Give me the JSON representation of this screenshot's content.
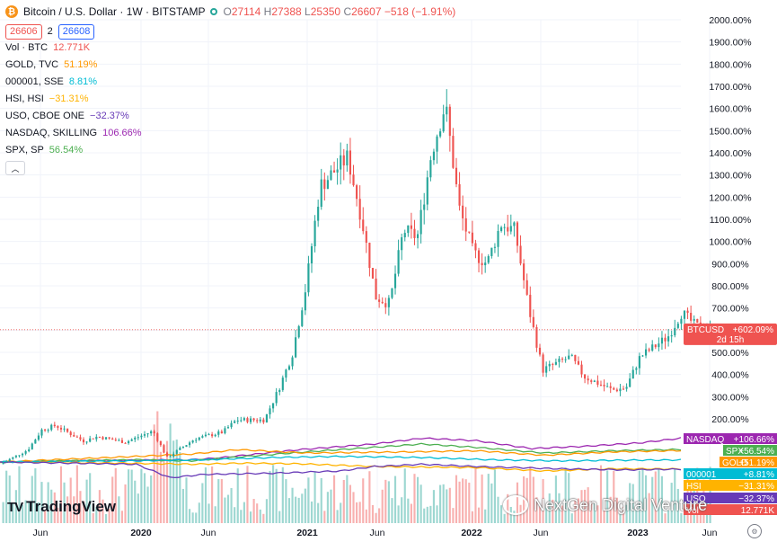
{
  "header": {
    "symbol": "Bitcoin / U.S. Dollar · 1W · BITSTAMP",
    "icon": "bitcoin-icon",
    "ohlc": {
      "o_label": "O",
      "o": "27114",
      "h_label": "H",
      "h": "27388",
      "l_label": "L",
      "l": "25350",
      "c_label": "C",
      "c": "26607",
      "change": "−518 (−1.91%)"
    },
    "bid": "26606",
    "spread": "2",
    "ask": "26608"
  },
  "legend": [
    {
      "label": "Vol · BTC",
      "value": "12.771K",
      "color": "#ef5350"
    },
    {
      "label": "GOLD, TVC",
      "value": "51.19%",
      "color": "#ff9800"
    },
    {
      "label": "000001, SSE",
      "value": "8.81%",
      "color": "#00bcd4"
    },
    {
      "label": "HSI, HSI",
      "value": "−31.31%",
      "color": "#ffb300"
    },
    {
      "label": "USO, CBOE ONE",
      "value": "−32.37%",
      "color": "#673ab7"
    },
    {
      "label": "NASDAQ, SKILLING",
      "value": "106.66%",
      "color": "#9c27b0"
    },
    {
      "label": "SPX, SP",
      "value": "56.54%",
      "color": "#4caf50"
    }
  ],
  "collapse_icon": "chevron-up-icon",
  "brand": {
    "name": "TradingView",
    "mark": "TV"
  },
  "watermark": {
    "text": "NextGen Digital Venture"
  },
  "settings_icon": "gear-icon",
  "chart_data": {
    "type": "candlestick",
    "scale": "percent",
    "y_axis_labels": [
      "2000.00%",
      "1900.00%",
      "1800.00%",
      "1700.00%",
      "1600.00%",
      "1500.00%",
      "1400.00%",
      "1300.00%",
      "1200.00%",
      "1100.00%",
      "1000.00%",
      "900.00%",
      "800.00%",
      "700.00%",
      "600.00%",
      "500.00%",
      "400.00%",
      "300.00%",
      "200.00%"
    ],
    "y_range": [
      -100,
      2000
    ],
    "x_labels": [
      "Jun",
      "2020",
      "Jun",
      "2021",
      "Jun",
      "2022",
      "Jun",
      "2023",
      "Jun"
    ],
    "x_bold": [
      "2020",
      "2021",
      "2022",
      "2023"
    ],
    "btc_path_pct": [
      [
        "2019-03",
        -4
      ],
      [
        "2019-05",
        60
      ],
      [
        "2019-06",
        150
      ],
      [
        "2019-07",
        170
      ],
      [
        "2019-09",
        100
      ],
      [
        "2019-10",
        120
      ],
      [
        "2019-12",
        95
      ],
      [
        "2020-02",
        145
      ],
      [
        "2020-03",
        25
      ],
      [
        "2020-05",
        110
      ],
      [
        "2020-07",
        140
      ],
      [
        "2020-08",
        195
      ],
      [
        "2020-10",
        195
      ],
      [
        "2020-11",
        330
      ],
      [
        "2020-12",
        490
      ],
      [
        "2021-01",
        800
      ],
      [
        "2021-02",
        1250
      ],
      [
        "2021-04",
        1380
      ],
      [
        "2021-05",
        1100
      ],
      [
        "2021-06",
        750
      ],
      [
        "2021-07",
        720
      ],
      [
        "2021-08",
        1050
      ],
      [
        "2021-09",
        1020
      ],
      [
        "2021-10",
        1400
      ],
      [
        "2021-11",
        1620
      ],
      [
        "2021-12",
        1150
      ],
      [
        "2022-01",
        950
      ],
      [
        "2022-02",
        900
      ],
      [
        "2022-03",
        1080
      ],
      [
        "2022-04",
        1050
      ],
      [
        "2022-05",
        700
      ],
      [
        "2022-06",
        420
      ],
      [
        "2022-08",
        480
      ],
      [
        "2022-09",
        390
      ],
      [
        "2022-11",
        330
      ],
      [
        "2022-12",
        340
      ],
      [
        "2023-01",
        480
      ],
      [
        "2023-03",
        570
      ],
      [
        "2023-04",
        680
      ],
      [
        "2023-05",
        620
      ],
      [
        "2023-06",
        602
      ]
    ],
    "current_label": "BTCUSD",
    "current_value": "+602.09%",
    "countdown": "2d 15h",
    "series": [
      {
        "name": "NASDAQ",
        "value": "+106.66%",
        "color": "#9c27b0"
      },
      {
        "name": "SPX",
        "value": "+56.54%",
        "color": "#4caf50"
      },
      {
        "name": "GOLD",
        "value": "+51.19%",
        "color": "#ff9800"
      },
      {
        "name": "000001",
        "value": "+8.81%",
        "color": "#00bcd4"
      },
      {
        "name": "HSI",
        "value": "−31.31%",
        "color": "#ffb300"
      },
      {
        "name": "USO",
        "value": "−32.37%",
        "color": "#673ab7"
      },
      {
        "name": "Vol",
        "value": "12.771K",
        "color": "#ef5350"
      }
    ],
    "series_paths": {
      "NASDAQ": [
        [
          0,
          0
        ],
        [
          0.2,
          8
        ],
        [
          0.28,
          10
        ],
        [
          0.32,
          18
        ],
        [
          0.44,
          55
        ],
        [
          0.55,
          80
        ],
        [
          0.62,
          106
        ],
        [
          0.7,
          95
        ],
        [
          0.78,
          60
        ],
        [
          0.86,
          70
        ],
        [
          0.94,
          85
        ],
        [
          1,
          106
        ]
      ],
      "SPX": [
        [
          0,
          0
        ],
        [
          0.2,
          10
        ],
        [
          0.28,
          5
        ],
        [
          0.34,
          20
        ],
        [
          0.45,
          45
        ],
        [
          0.62,
          80
        ],
        [
          0.7,
          65
        ],
        [
          0.8,
          40
        ],
        [
          0.9,
          50
        ],
        [
          1,
          56
        ]
      ],
      "GOLD": [
        [
          0,
          0
        ],
        [
          0.2,
          25
        ],
        [
          0.28,
          35
        ],
        [
          0.35,
          55
        ],
        [
          0.45,
          40
        ],
        [
          0.6,
          45
        ],
        [
          0.7,
          50
        ],
        [
          0.8,
          30
        ],
        [
          0.9,
          45
        ],
        [
          1,
          51
        ]
      ],
      "000001": [
        [
          0,
          0
        ],
        [
          0.2,
          5
        ],
        [
          0.3,
          10
        ],
        [
          0.4,
          20
        ],
        [
          0.5,
          25
        ],
        [
          0.62,
          20
        ],
        [
          0.72,
          10
        ],
        [
          0.82,
          5
        ],
        [
          0.92,
          8
        ],
        [
          1,
          9
        ]
      ],
      "HSI": [
        [
          0,
          0
        ],
        [
          0.18,
          -5
        ],
        [
          0.28,
          -10
        ],
        [
          0.36,
          -5
        ],
        [
          0.44,
          -8
        ],
        [
          0.55,
          -20
        ],
        [
          0.7,
          -25
        ],
        [
          0.8,
          -40
        ],
        [
          0.9,
          -30
        ],
        [
          1,
          -31
        ]
      ],
      "USO": [
        [
          0,
          0
        ],
        [
          0.2,
          -10
        ],
        [
          0.25,
          -70
        ],
        [
          0.3,
          -55
        ],
        [
          0.4,
          -50
        ],
        [
          0.5,
          -40
        ],
        [
          0.55,
          -20
        ],
        [
          0.62,
          -10
        ],
        [
          0.7,
          -20
        ],
        [
          0.82,
          -30
        ],
        [
          0.92,
          -35
        ],
        [
          1,
          -32
        ]
      ]
    }
  }
}
